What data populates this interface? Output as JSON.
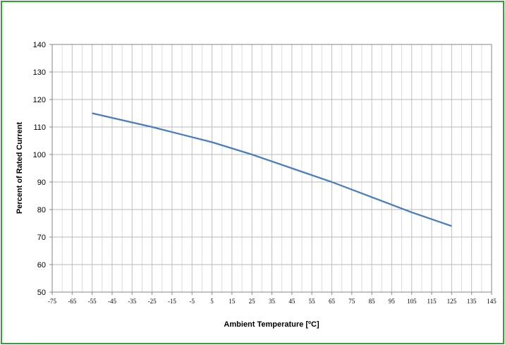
{
  "chart_data": {
    "type": "line",
    "title": "",
    "xlabel": "Ambient Temperature [ºC]",
    "ylabel": "Percent of Rated Current",
    "xlim": [
      -75,
      145
    ],
    "ylim": [
      50,
      140
    ],
    "x_ticks": [
      -75,
      -65,
      -55,
      -45,
      -35,
      -25,
      -15,
      -5,
      5,
      15,
      25,
      35,
      45,
      55,
      65,
      75,
      85,
      95,
      105,
      115,
      125,
      135,
      145
    ],
    "y_ticks": [
      50,
      60,
      70,
      80,
      90,
      100,
      110,
      120,
      130,
      140
    ],
    "grid": true,
    "series": [
      {
        "color": "#4a7ebb",
        "x": [
          -55,
          -25,
          5,
          25,
          45,
          65,
          85,
          105,
          125
        ],
        "y": [
          115,
          110,
          104.5,
          100,
          95,
          90,
          84.5,
          79,
          74
        ]
      }
    ]
  }
}
